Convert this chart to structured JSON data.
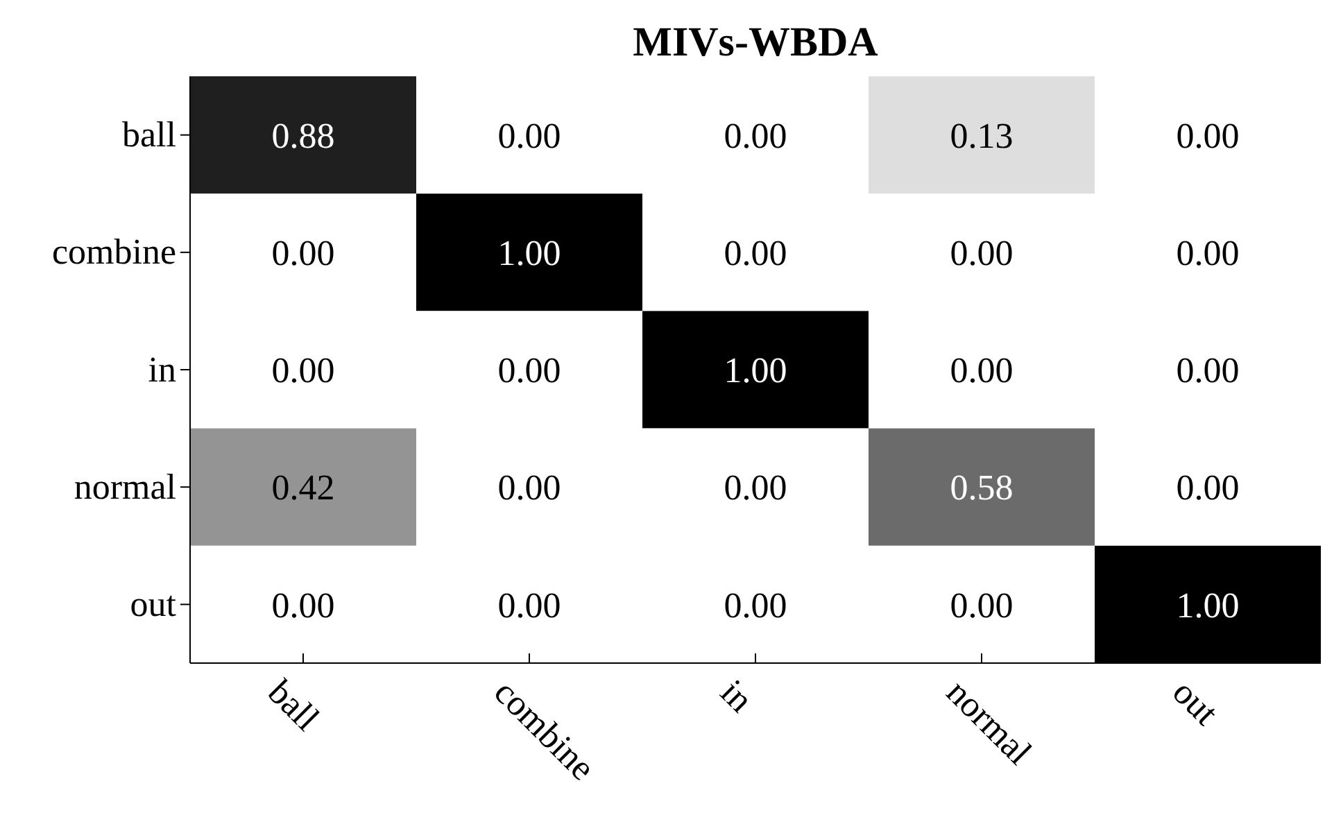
{
  "chart_data": {
    "type": "heatmap",
    "title": "MIVs-WBDA",
    "categories": [
      "ball",
      "combine",
      "in",
      "normal",
      "out"
    ],
    "y_categories": [
      "ball",
      "combine",
      "in",
      "normal",
      "out"
    ],
    "cells": [
      [
        0.88,
        0,
        0,
        0.13,
        0
      ],
      [
        0,
        1,
        0,
        0,
        0
      ],
      [
        0,
        0,
        1,
        0,
        0
      ],
      [
        0.42,
        0,
        0,
        0.58,
        0
      ],
      [
        0,
        0,
        0,
        0,
        1
      ]
    ],
    "cell_labels": [
      [
        "0.88",
        "0.00",
        "0.00",
        "0.13",
        "0.00"
      ],
      [
        "0.00",
        "1.00",
        "0.00",
        "0.00",
        "0.00"
      ],
      [
        "0.00",
        "0.00",
        "1.00",
        "0.00",
        "0.00"
      ],
      [
        "0.42",
        "0.00",
        "0.00",
        "0.58",
        "0.00"
      ],
      [
        "0.00",
        "0.00",
        "0.00",
        "0.00",
        "1.00"
      ]
    ]
  }
}
